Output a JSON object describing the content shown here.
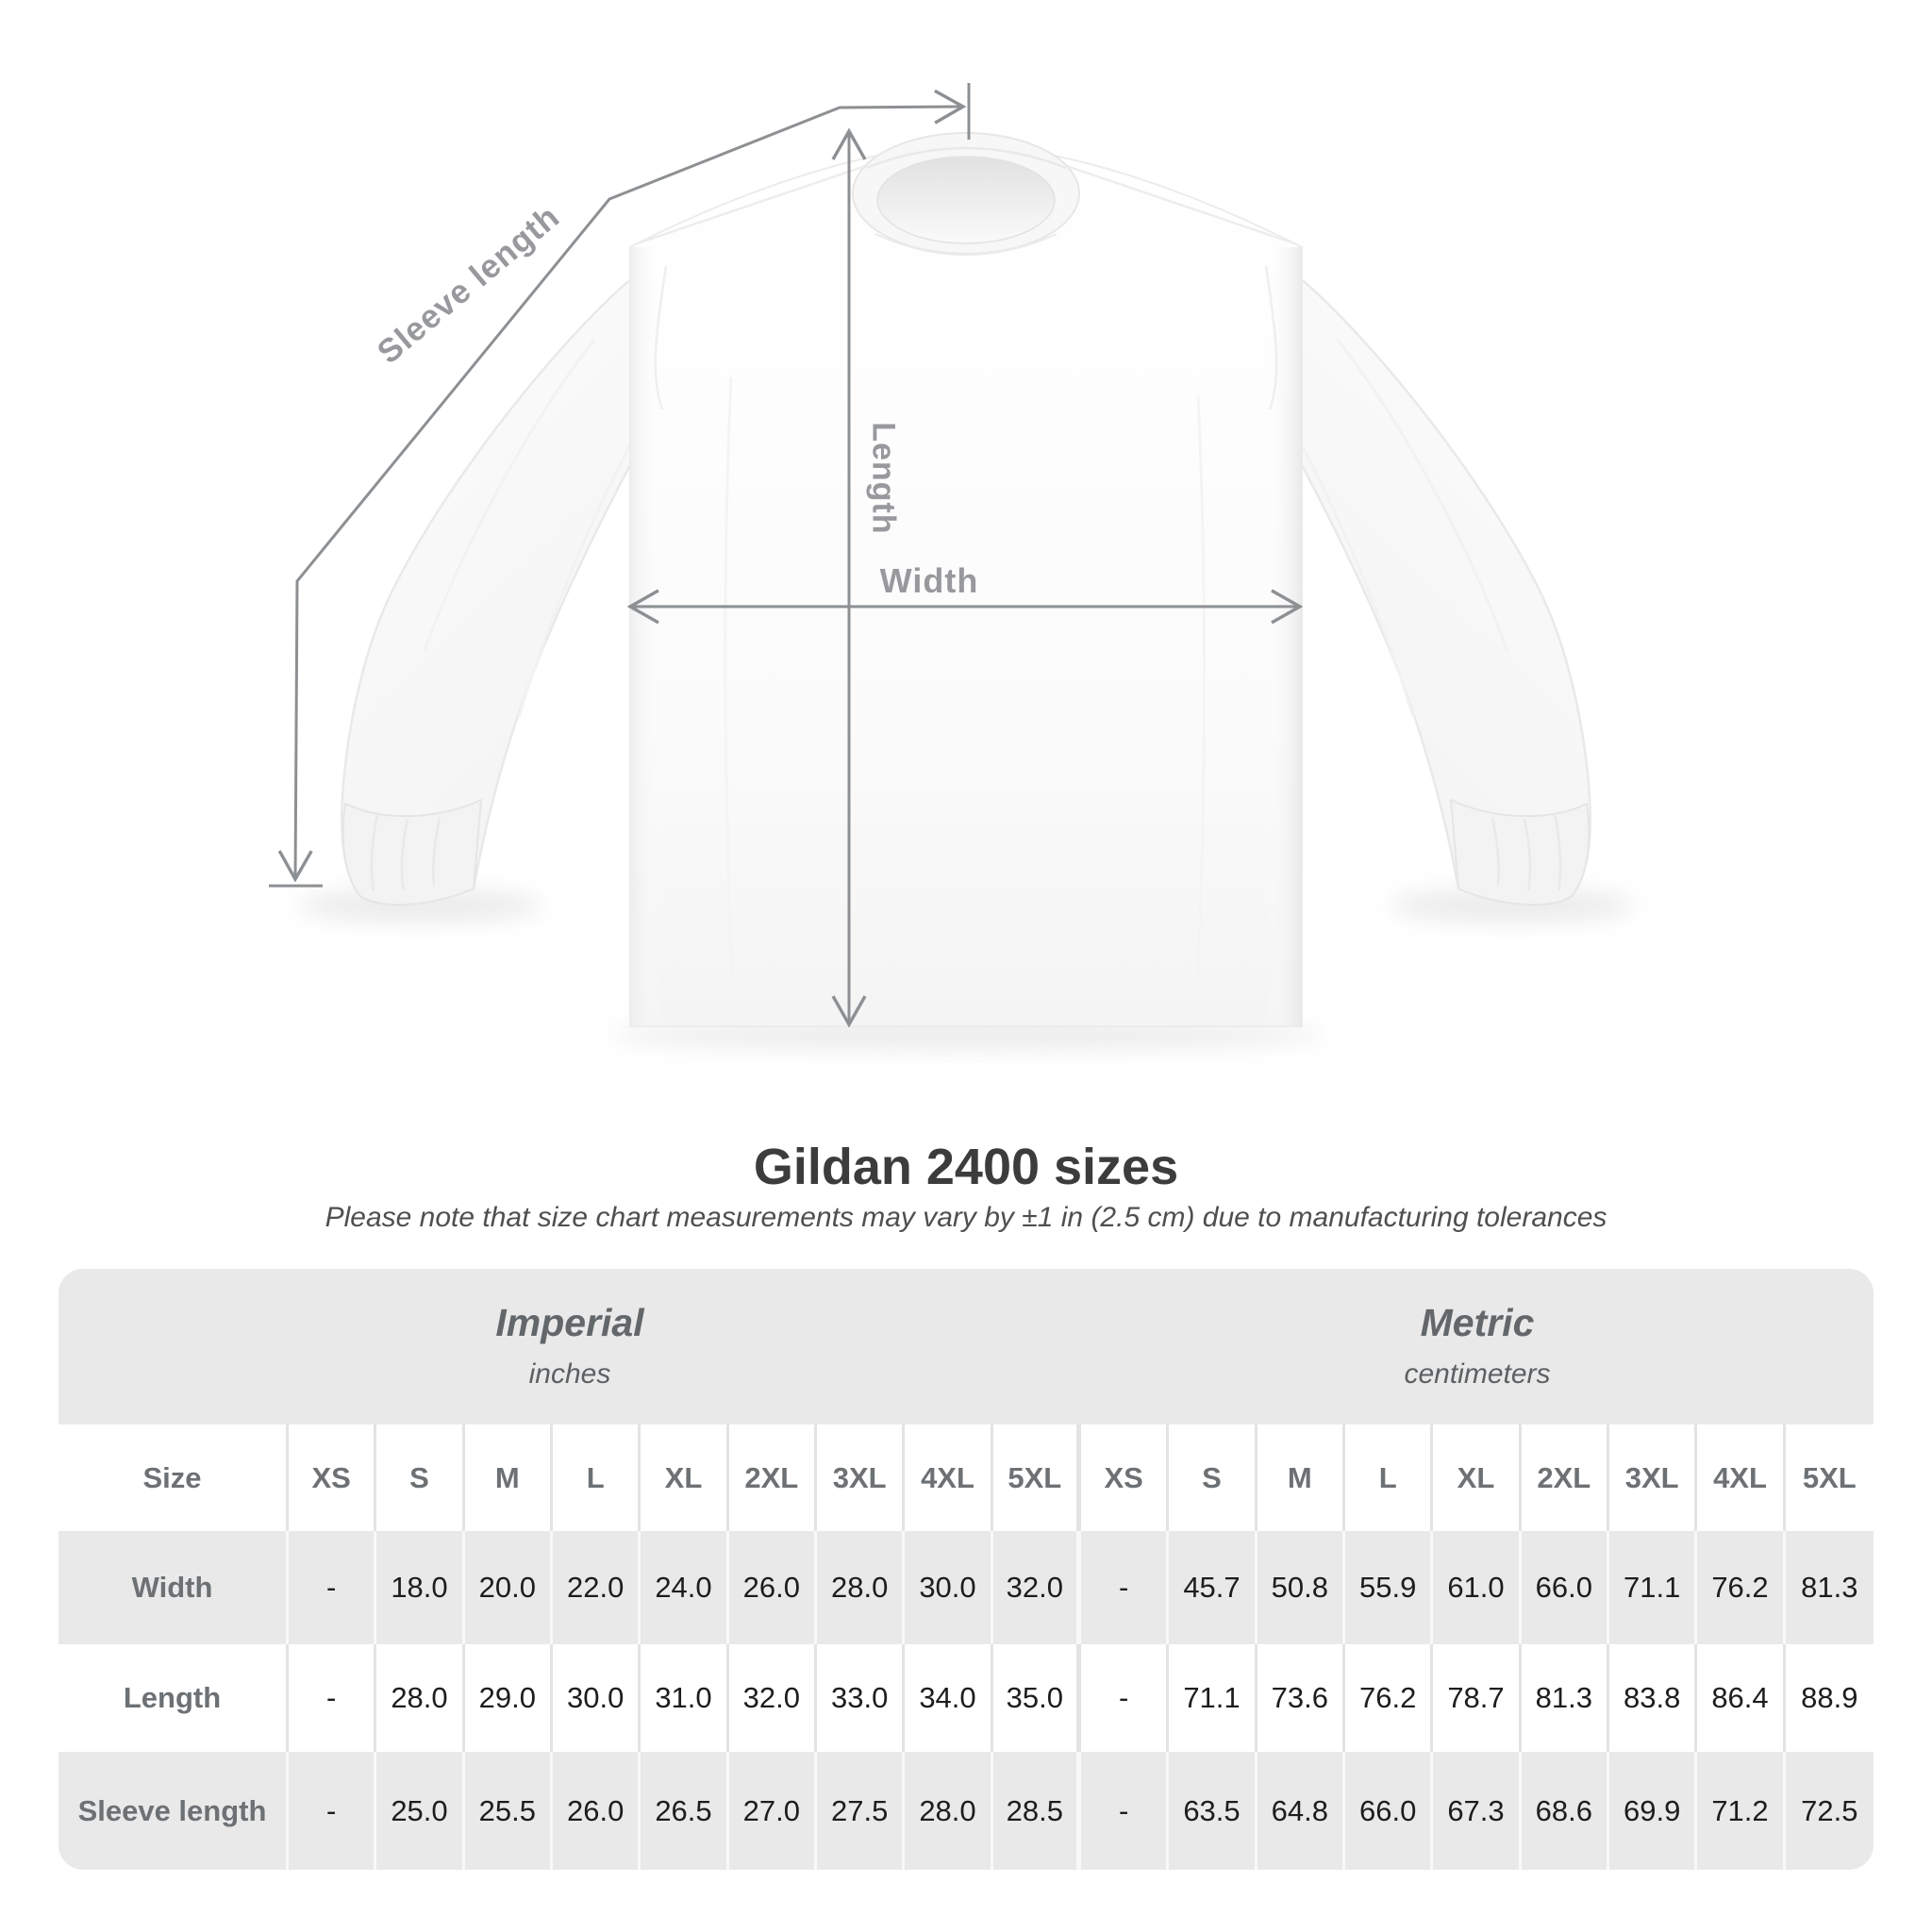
{
  "page": {
    "title": "Gildan 2400 sizes",
    "subtitle": "Please note that size chart measurements may vary by ±1 in (2.5 cm) due to manufacturing tolerances"
  },
  "diagram": {
    "labels": {
      "sleeve_length": "Sleeve length",
      "length": "Length",
      "width": "Width"
    }
  },
  "table": {
    "size_column_header": "Size",
    "units": {
      "imperial": {
        "name": "Imperial",
        "unit": "inches"
      },
      "metric": {
        "name": "Metric",
        "unit": "centimeters"
      }
    },
    "sizes": [
      "XS",
      "S",
      "M",
      "L",
      "XL",
      "2XL",
      "3XL",
      "4XL",
      "5XL"
    ],
    "rows": [
      {
        "label": "Width",
        "imperial": [
          "-",
          "18.0",
          "20.0",
          "22.0",
          "24.0",
          "26.0",
          "28.0",
          "30.0",
          "32.0"
        ],
        "metric": [
          "-",
          "45.7",
          "50.8",
          "55.9",
          "61.0",
          "66.0",
          "71.1",
          "76.2",
          "81.3"
        ]
      },
      {
        "label": "Length",
        "imperial": [
          "-",
          "28.0",
          "29.0",
          "30.0",
          "31.0",
          "32.0",
          "33.0",
          "34.0",
          "35.0"
        ],
        "metric": [
          "-",
          "71.1",
          "73.6",
          "76.2",
          "78.7",
          "81.3",
          "83.8",
          "86.4",
          "88.9"
        ]
      },
      {
        "label": "Sleeve length",
        "imperial": [
          "-",
          "25.0",
          "25.5",
          "26.0",
          "26.5",
          "27.0",
          "27.5",
          "28.0",
          "28.5"
        ],
        "metric": [
          "-",
          "63.5",
          "64.8",
          "66.0",
          "67.3",
          "68.6",
          "69.9",
          "71.2",
          "72.5"
        ]
      }
    ]
  },
  "colors": {
    "measurement_line": "#8d9093",
    "measurement_label": "#97999c",
    "title_text": "#3c3c3c",
    "subtitle_text": "#4f4f4f",
    "table_band_gray": "#e9e9e9",
    "table_header_text": "#6d7174",
    "table_value_text": "#1d1d1d",
    "shirt_white": "#fdfdfd"
  }
}
